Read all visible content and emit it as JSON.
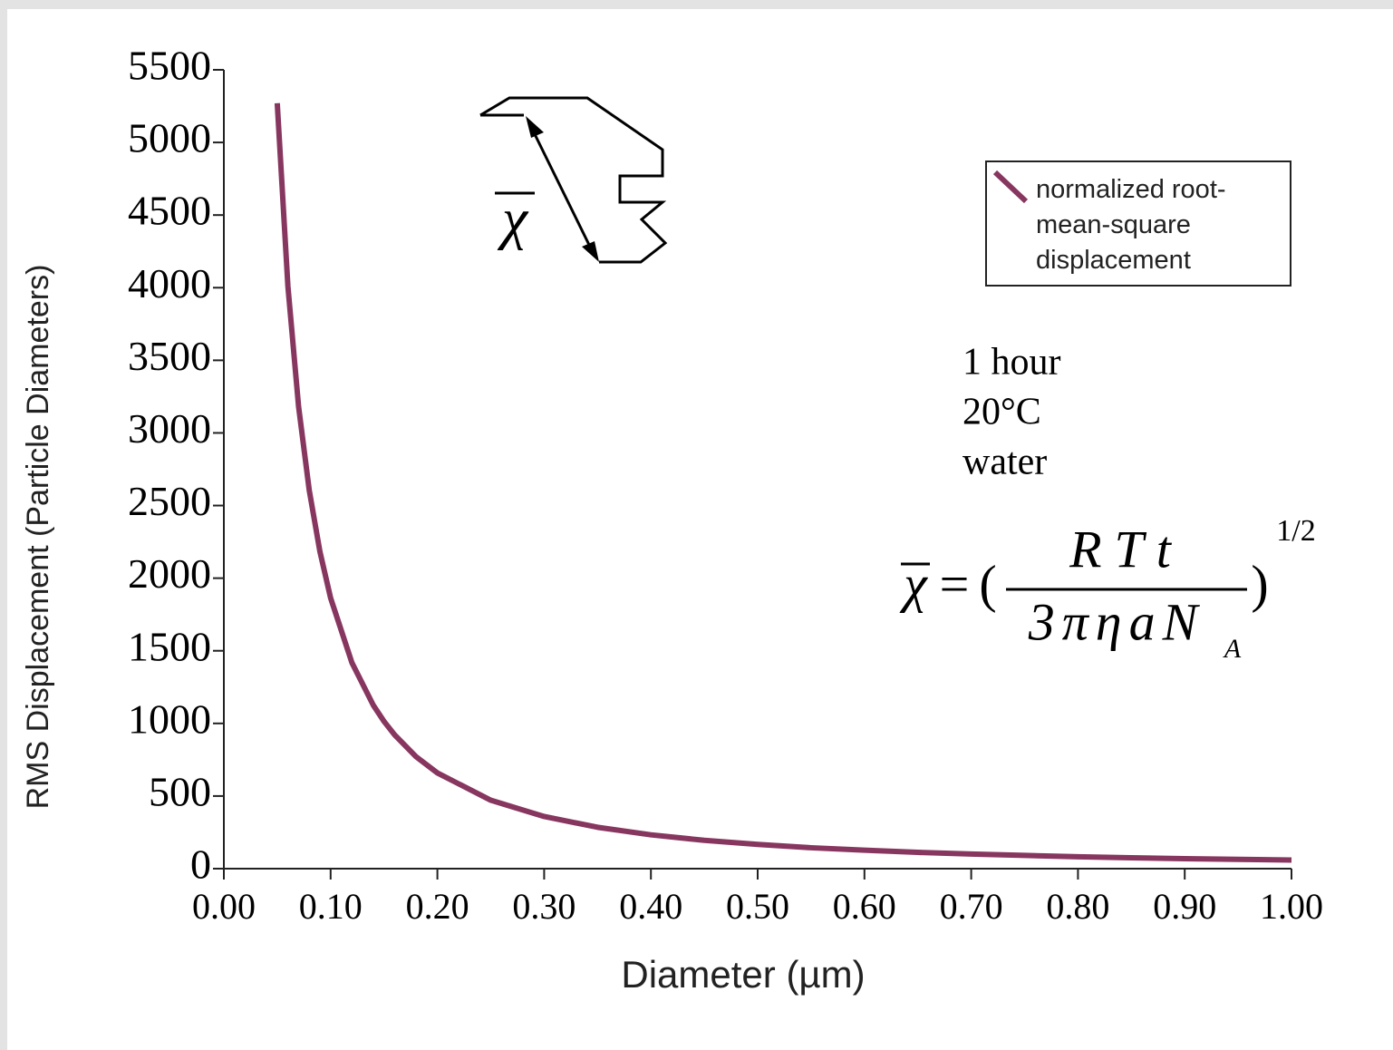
{
  "chart_data": {
    "type": "line",
    "x_label": "Diameter (µm)",
    "y_label": "RMS Displacement (Particle Diameters)",
    "x": [
      0.05,
      0.06,
      0.07,
      0.08,
      0.09,
      0.1,
      0.12,
      0.14,
      0.15,
      0.16,
      0.18,
      0.2,
      0.25,
      0.3,
      0.35,
      0.4,
      0.45,
      0.5,
      0.55,
      0.6,
      0.65,
      0.7,
      0.75,
      0.8,
      0.85,
      0.9,
      0.95,
      1.0
    ],
    "series": [
      {
        "name": "normalized root-mean-square displacement",
        "color": "#87375f",
        "values": [
          5270,
          4009,
          3181,
          2604,
          2182,
          1863,
          1417,
          1125,
          1014,
          921,
          771,
          659,
          471,
          359,
          285,
          233,
          195,
          167,
          144,
          127,
          112,
          101,
          91,
          82,
          75,
          69,
          64,
          59
        ]
      }
    ],
    "xlim": [
      0,
      1
    ],
    "xticks": [
      {
        "value": 0,
        "label": "0.00"
      },
      {
        "value": 0.1,
        "label": "0.10"
      },
      {
        "value": 0.2,
        "label": "0.20"
      },
      {
        "value": 0.3,
        "label": "0.30"
      },
      {
        "value": 0.4,
        "label": "0.40"
      },
      {
        "value": 0.5,
        "label": "0.50"
      },
      {
        "value": 0.6,
        "label": "0.60"
      },
      {
        "value": 0.7,
        "label": "0.70"
      },
      {
        "value": 0.8,
        "label": "0.80"
      },
      {
        "value": 0.9,
        "label": "0.90"
      },
      {
        "value": 1,
        "label": "1.00"
      }
    ],
    "ylim": [
      0,
      5500
    ],
    "yticks": [
      0,
      500,
      1000,
      1500,
      2000,
      2500,
      3000,
      3500,
      4000,
      4500,
      5000,
      5500
    ],
    "grid": false,
    "legend": "upper right",
    "annotations": [
      "1 hour",
      "20°C",
      "water"
    ],
    "diagram_label": "χ",
    "formula": {
      "lhs": "χ",
      "equals": "=",
      "open": "(",
      "numerator": "RTt",
      "denominator": "3πηaN",
      "subscript": "A",
      "close": ")",
      "exponent": "1/2"
    }
  }
}
